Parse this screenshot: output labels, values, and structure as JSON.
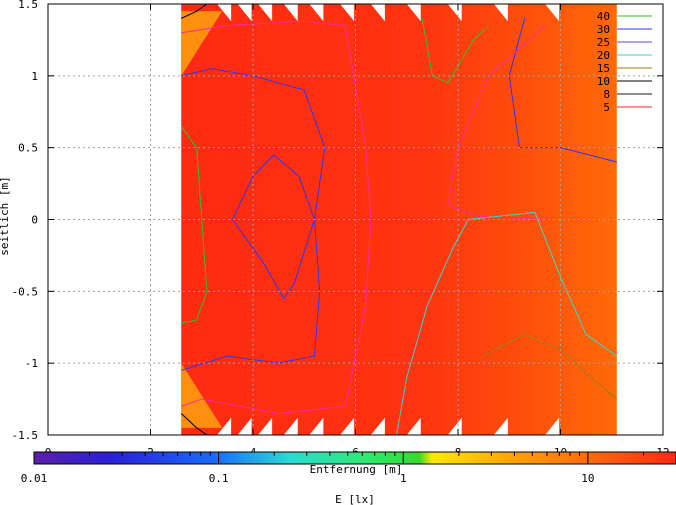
{
  "chart_data": {
    "type": "heatmap",
    "title": "",
    "xlabel": "Entfernung [m]",
    "ylabel": "seitlich [m]",
    "colorbar_label": "E [lx]",
    "xlim": [
      0,
      12
    ],
    "ylim": [
      -1.5,
      1.5
    ],
    "x_ticks": [
      "0",
      "2",
      "4",
      "6",
      "8",
      "10",
      "12"
    ],
    "y_ticks": [
      "1.5",
      "1",
      "0.5",
      "0",
      "-0.5",
      "-1",
      "-1.5"
    ],
    "colorbar_ticks": [
      "0.01",
      "0.1",
      "1",
      "10"
    ],
    "colorbar_range": [
      0.01,
      30
    ],
    "colorbar_scale": "log",
    "grid": true,
    "legend_position": "top-right",
    "contours": [
      {
        "level": "40",
        "color": "#2fbf2f"
      },
      {
        "level": "30",
        "color": "#3535e6"
      },
      {
        "level": "25",
        "color": "#7a3cc8"
      },
      {
        "level": "20",
        "color": "#3ad6c6"
      },
      {
        "level": "15",
        "color": "#a07a18"
      },
      {
        "level": "10",
        "color": "#000000"
      },
      {
        "level": "8",
        "color": "#1a1a1a"
      },
      {
        "level": "5",
        "color": "#ff2a2a"
      }
    ],
    "data_extent": {
      "x": [
        2.6,
        11.1
      ],
      "y": [
        -1.5,
        1.5
      ]
    }
  }
}
